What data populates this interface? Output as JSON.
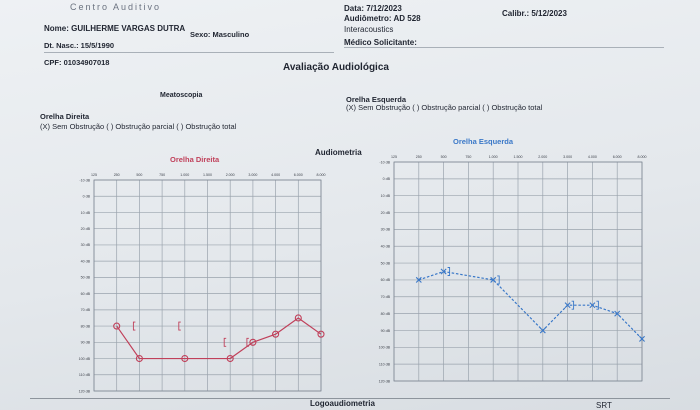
{
  "header": {
    "clinic": "Centro Auditivo",
    "patient_name": "Nome: GUILHERME VARGAS DUTRA",
    "birth_date": "Dt. Nasc.: 15/5/1990",
    "sex": "Sexo: Masculino",
    "cpf": "CPF: 01034907018",
    "date": "Data: 7/12/2023",
    "audiometer_line1": "Audiômetro: AD 528",
    "audiometer_line2": "Interacoustics",
    "calibration": "Calibr.: 5/12/2023",
    "requesting_doctor": "Médico Solicitante:"
  },
  "section_title": "Avaliação Audiológica",
  "meatoscopy": {
    "title": "Meatoscopia",
    "right_label": "Orelha Direita",
    "right_options": "(X) Sem Obstrução ( ) Obstrução parcial ( ) Obstrução total",
    "left_label": "Orelha Esquerda",
    "left_options": "(X) Sem Obstrução ( ) Obstrução parcial ( ) Obstrução total"
  },
  "audiometry_title": "Audiometria",
  "bottom": {
    "logoaudiometry": "Logoaudiometria",
    "srt": "SRT"
  },
  "colors": {
    "right_ear": "#c0405a",
    "left_ear": "#3a78c8"
  },
  "chart_data": [
    {
      "type": "line",
      "title": "Orelha Direita",
      "x": [
        "125",
        "250",
        "500",
        "750",
        "1.000",
        "1.500",
        "2.000",
        "3.000",
        "4.000",
        "6.000",
        "8.000"
      ],
      "y_ticks": [
        "-10 dB",
        "0 dB",
        "10 dB",
        "20 dB",
        "30 dB",
        "40 dB",
        "50 dB",
        "60 dB",
        "70 dB",
        "80 dB",
        "90 dB",
        "100 dB",
        "110 dB",
        "120 dB"
      ],
      "y_inverted": true,
      "ylim": [
        -10,
        120
      ],
      "series": [
        {
          "marker": "circle",
          "color": "#c0405a",
          "points": [
            {
              "x": "250",
              "y": 80
            },
            {
              "x": "500",
              "y": 100
            },
            {
              "x": "1.000",
              "y": 100
            },
            {
              "x": "2.000",
              "y": 100
            },
            {
              "x": "3.000",
              "y": 90
            },
            {
              "x": "4.000",
              "y": 85
            },
            {
              "x": "6.000",
              "y": 75
            },
            {
              "x": "8.000",
              "y": 85
            }
          ]
        },
        {
          "marker": "bracket",
          "color": "#c0405a",
          "points": [
            {
              "x": "500",
              "y": 80
            },
            {
              "x": "1.000",
              "y": 80
            },
            {
              "x": "2.000",
              "y": 90
            },
            {
              "x": "3.000",
              "y": 90
            }
          ]
        }
      ]
    },
    {
      "type": "line",
      "title": "Orelha Esquerda",
      "x": [
        "125",
        "250",
        "500",
        "750",
        "1.000",
        "1.500",
        "2.000",
        "3.000",
        "4.000",
        "6.000",
        "8.000"
      ],
      "y_ticks": [
        "-10 dB",
        "0 dB",
        "10 dB",
        "20 dB",
        "30 dB",
        "40 dB",
        "50 dB",
        "60 dB",
        "70 dB",
        "80 dB",
        "90 dB",
        "100 dB",
        "110 dB",
        "120 dB"
      ],
      "y_inverted": true,
      "ylim": [
        -10,
        120
      ],
      "series": [
        {
          "marker": "x",
          "color": "#3a78c8",
          "points": [
            {
              "x": "250",
              "y": 60
            },
            {
              "x": "500",
              "y": 55
            },
            {
              "x": "1.000",
              "y": 60
            },
            {
              "x": "2.000",
              "y": 90
            },
            {
              "x": "3.000",
              "y": 75
            },
            {
              "x": "4.000",
              "y": 75
            },
            {
              "x": "6.000",
              "y": 80
            },
            {
              "x": "8.000",
              "y": 95
            }
          ]
        },
        {
          "marker": "bracket",
          "color": "#3a78c8",
          "points": [
            {
              "x": "500",
              "y": 55
            },
            {
              "x": "1.000",
              "y": 60
            },
            {
              "x": "3.000",
              "y": 75
            },
            {
              "x": "4.000",
              "y": 75
            }
          ]
        }
      ]
    }
  ]
}
